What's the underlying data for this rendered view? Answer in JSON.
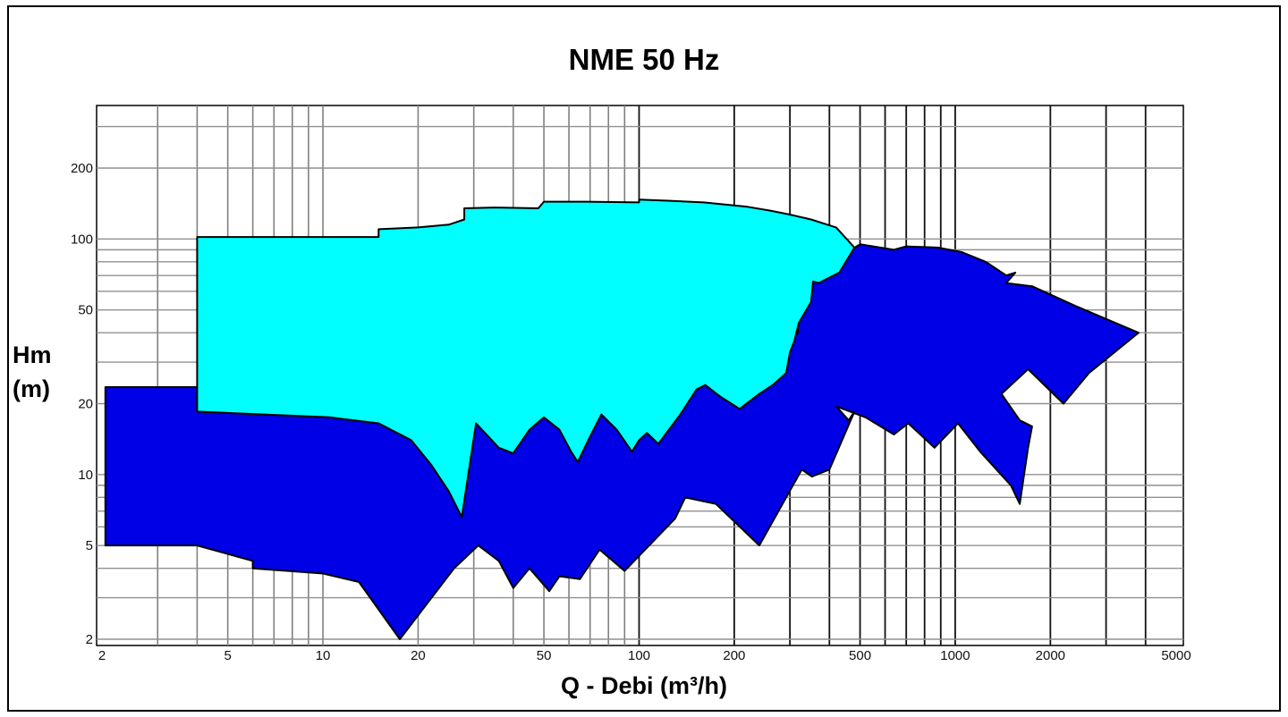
{
  "chart_data": {
    "type": "area",
    "title": "NME 50 Hz",
    "xlabel": "Q - Debi (m³/h)",
    "ylabel_line1": "Hm",
    "ylabel_line2": "(m)",
    "xscale": "log",
    "yscale": "log",
    "xlim": [
      2,
      5000
    ],
    "ylim": [
      2,
      200
    ],
    "grid": true,
    "x_ticks": [
      "2",
      "5",
      "10",
      "20",
      "50",
      "100",
      "200",
      "500",
      "1000",
      "2000",
      "5000"
    ],
    "y_ticks": [
      "200",
      "100",
      "50",
      "20",
      "10",
      "5",
      "2"
    ],
    "colors": {
      "low_head_region": "#0000e6",
      "high_head_region": "#00ffff",
      "outline": "#000000"
    },
    "series": [
      {
        "fill": "#0000e6",
        "points": [
          [
            2.05,
            23.5
          ],
          [
            4,
            23.5
          ],
          [
            4,
            18.5
          ],
          [
            10.5,
            17.5
          ],
          [
            15,
            16.5
          ],
          [
            19,
            14
          ],
          [
            22,
            11
          ],
          [
            25,
            8.5
          ],
          [
            27.5,
            6.6
          ],
          [
            30.5,
            16.5
          ],
          [
            36,
            13
          ],
          [
            40,
            12.3
          ],
          [
            45,
            15.5
          ],
          [
            50,
            17.5
          ],
          [
            56,
            15.5
          ],
          [
            61,
            12.5
          ],
          [
            64,
            11.3
          ],
          [
            70,
            14.5
          ],
          [
            76,
            18
          ],
          [
            85,
            15.5
          ],
          [
            95,
            12.5
          ],
          [
            100,
            14
          ],
          [
            106,
            15
          ],
          [
            115,
            13.5
          ],
          [
            135,
            18
          ],
          [
            152,
            23
          ],
          [
            162,
            24
          ],
          [
            180,
            21.5
          ],
          [
            208,
            19
          ],
          [
            240,
            22
          ],
          [
            290,
            27
          ],
          [
            283,
            30
          ],
          [
            300,
            36
          ],
          [
            318,
            40
          ],
          [
            320,
            47
          ],
          [
            330,
            72
          ],
          [
            342,
            78
          ],
          [
            355,
            74
          ],
          [
            380,
            68
          ],
          [
            420,
            82
          ],
          [
            500,
            95
          ],
          [
            640,
            90
          ],
          [
            700,
            93
          ],
          [
            880,
            92
          ],
          [
            1050,
            88
          ],
          [
            1250,
            80
          ],
          [
            1450,
            70
          ],
          [
            1550,
            72
          ],
          [
            1450,
            65
          ],
          [
            1750,
            63
          ],
          [
            2400,
            52
          ],
          [
            3800,
            40
          ],
          [
            2650,
            27
          ],
          [
            2200,
            20
          ],
          [
            1700,
            28
          ],
          [
            1400,
            22
          ],
          [
            1600,
            17
          ],
          [
            1750,
            16
          ],
          [
            1700,
            13
          ],
          [
            1600,
            7.5
          ],
          [
            1500,
            9
          ],
          [
            1200,
            12.5
          ],
          [
            1020,
            16.5
          ],
          [
            860,
            13
          ],
          [
            710,
            16.5
          ],
          [
            640,
            14.8
          ],
          [
            520,
            17.5
          ],
          [
            420,
            19.5
          ],
          [
            460,
            17
          ],
          [
            480,
            18.5
          ],
          [
            400,
            10.5
          ],
          [
            352,
            9.8
          ],
          [
            327,
            10.5
          ],
          [
            240,
            5
          ],
          [
            175,
            7.5
          ],
          [
            140,
            8
          ],
          [
            130,
            6.5
          ],
          [
            90,
            3.9
          ],
          [
            75,
            4.8
          ],
          [
            65,
            3.6
          ],
          [
            56,
            3.7
          ],
          [
            52,
            3.2
          ],
          [
            45,
            4
          ],
          [
            40,
            3.3
          ],
          [
            36,
            4.3
          ],
          [
            31,
            5
          ],
          [
            26,
            4
          ],
          [
            17.5,
            2
          ],
          [
            13,
            3.5
          ],
          [
            10,
            3.8
          ],
          [
            6,
            4
          ],
          [
            6,
            4.3
          ],
          [
            4,
            5
          ],
          [
            2.05,
            5
          ]
        ]
      },
      {
        "fill": "#00ffff",
        "points": [
          [
            4,
            102
          ],
          [
            9,
            102
          ],
          [
            15,
            102
          ],
          [
            15,
            110
          ],
          [
            20,
            112
          ],
          [
            25,
            115
          ],
          [
            28,
            121
          ],
          [
            28,
            135
          ],
          [
            35,
            136
          ],
          [
            48,
            135
          ],
          [
            50,
            144
          ],
          [
            68,
            144
          ],
          [
            100,
            143
          ],
          [
            100,
            147
          ],
          [
            128,
            145
          ],
          [
            160,
            143
          ],
          [
            220,
            137
          ],
          [
            260,
            132
          ],
          [
            300,
            127
          ],
          [
            350,
            121
          ],
          [
            420,
            112
          ],
          [
            480,
            92
          ],
          [
            430,
            72
          ],
          [
            370,
            65
          ],
          [
            355,
            66
          ],
          [
            350,
            54
          ],
          [
            320,
            44
          ],
          [
            310,
            37
          ],
          [
            300,
            33
          ],
          [
            292,
            27
          ],
          [
            265,
            24
          ],
          [
            240,
            22
          ],
          [
            208,
            19
          ],
          [
            180,
            21.5
          ],
          [
            162,
            24
          ],
          [
            152,
            23
          ],
          [
            135,
            18
          ],
          [
            115,
            13.5
          ],
          [
            106,
            15
          ],
          [
            100,
            14
          ],
          [
            95,
            12.5
          ],
          [
            85,
            15.5
          ],
          [
            76,
            18
          ],
          [
            70,
            14.5
          ],
          [
            64,
            11.3
          ],
          [
            61,
            12.5
          ],
          [
            56,
            15.5
          ],
          [
            50,
            17.5
          ],
          [
            45,
            15.5
          ],
          [
            40,
            12.3
          ],
          [
            36,
            13
          ],
          [
            30.5,
            16.5
          ],
          [
            27.5,
            6.6
          ],
          [
            25,
            8.5
          ],
          [
            22,
            11
          ],
          [
            19,
            14
          ],
          [
            15,
            16.5
          ],
          [
            10.5,
            17.5
          ],
          [
            4,
            18.5
          ]
        ]
      }
    ]
  }
}
